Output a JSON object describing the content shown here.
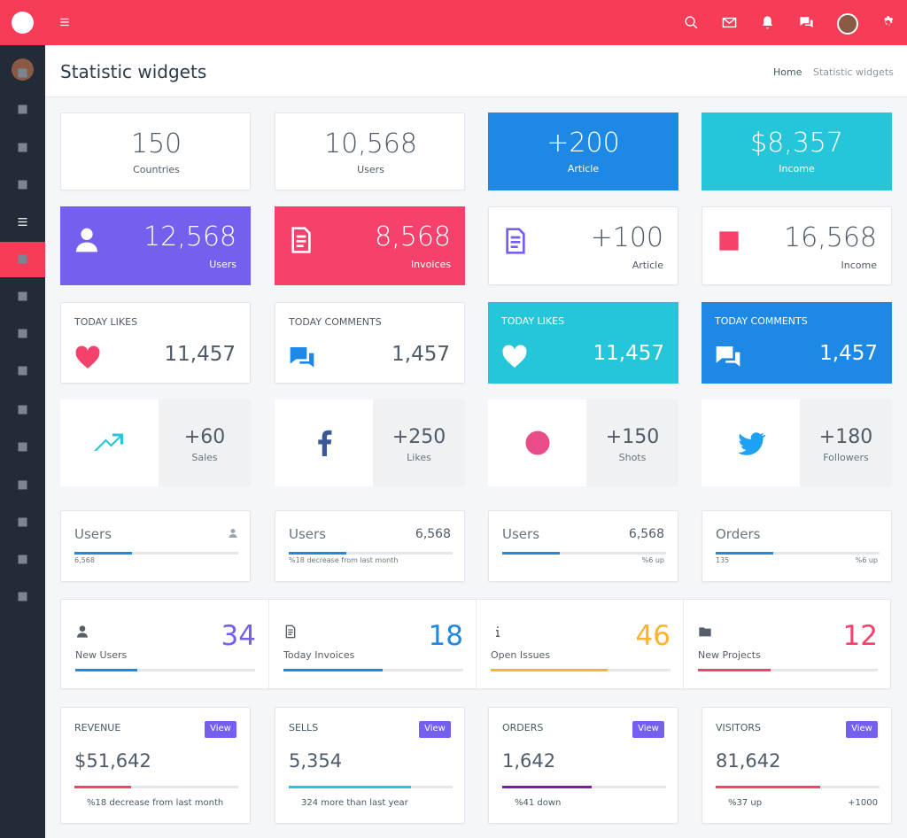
{
  "header": {
    "title": "Statistic widgets",
    "breadcrumb": [
      "Home",
      "Statistic widgets"
    ]
  },
  "row1": [
    {
      "value": "150",
      "label": "Countries"
    },
    {
      "value": "10,568",
      "label": "Users"
    },
    {
      "value": "+200",
      "label": "Article"
    },
    {
      "value": "$8,357",
      "label": "Income"
    }
  ],
  "row2": [
    {
      "value": "12,568",
      "label": "Users"
    },
    {
      "value": "8,568",
      "label": "Invoices"
    },
    {
      "value": "+100",
      "label": "Article"
    },
    {
      "value": "16,568",
      "label": "Income"
    }
  ],
  "row3": [
    {
      "label": "TODAY LIKES",
      "value": "11,457"
    },
    {
      "label": "TODAY COMMENTS",
      "value": "1,457"
    },
    {
      "label": "TODAY LIKES",
      "value": "11,457"
    },
    {
      "label": "TODAY COMMENTS",
      "value": "1,457"
    }
  ],
  "row4": [
    {
      "value": "+60",
      "label": "Sales"
    },
    {
      "value": "+250",
      "label": "Likes"
    },
    {
      "value": "+150",
      "label": "Shots"
    },
    {
      "value": "+180",
      "label": "Followers"
    }
  ],
  "row5": [
    {
      "title": "Users",
      "sub": "6,568"
    },
    {
      "title": "Users",
      "value": "6,568",
      "note": "%18 decrease from last month"
    },
    {
      "title": "Users",
      "value": "6,568",
      "note": "%6 up"
    },
    {
      "title": "Orders",
      "sub": "135",
      "note": "%6 up"
    }
  ],
  "row6": [
    {
      "value": "34",
      "label": "New Users"
    },
    {
      "value": "18",
      "label": "Today Invoices"
    },
    {
      "value": "46",
      "label": "Open Issues"
    },
    {
      "value": "12",
      "label": "New Projects"
    }
  ],
  "row7": [
    {
      "title": "REVENUE",
      "button": "View",
      "value": "$51,642",
      "note": "%18 decrease from last month"
    },
    {
      "title": "SELLS",
      "button": "View",
      "value": "5,354",
      "note": "324 more than last year"
    },
    {
      "title": "ORDERS",
      "button": "View",
      "value": "1,642",
      "note": "%41 down"
    },
    {
      "title": "VISITORS",
      "button": "View",
      "value": "81,642",
      "note": "%37 up",
      "extra": "+1000"
    }
  ]
}
